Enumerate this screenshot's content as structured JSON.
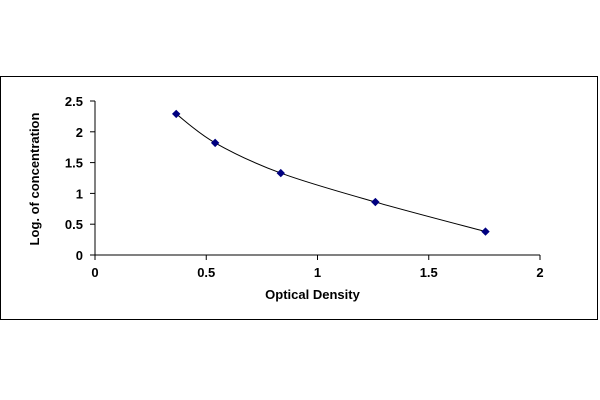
{
  "chart_data": {
    "type": "scatter",
    "title": "",
    "xlabel": "Optical Density",
    "ylabel": "Log. of concentration",
    "xlim": [
      0,
      2
    ],
    "ylim": [
      0,
      2.5
    ],
    "x_ticks": [
      0,
      0.5,
      1,
      1.5,
      2
    ],
    "x_tick_labels": [
      "0",
      "0.5",
      "1",
      "1.5",
      "2"
    ],
    "y_ticks": [
      0,
      0.5,
      1,
      1.5,
      2,
      2.5
    ],
    "y_tick_labels": [
      "0",
      "0.5",
      "1",
      "1.5",
      "2",
      "2.5"
    ],
    "grid": false,
    "legend": "none",
    "series": [
      {
        "points": [
          {
            "x": 0.365,
            "y": 2.29
          },
          {
            "x": 0.54,
            "y": 1.82
          },
          {
            "x": 0.835,
            "y": 1.33
          },
          {
            "x": 1.26,
            "y": 0.86
          },
          {
            "x": 1.755,
            "y": 0.38
          }
        ],
        "marker": "diamond",
        "color": "#000080",
        "line": "smooth",
        "line_color": "#000000"
      }
    ]
  }
}
